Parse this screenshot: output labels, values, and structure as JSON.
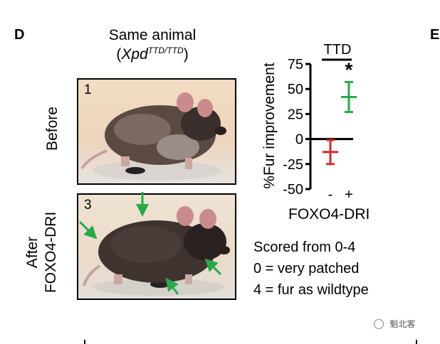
{
  "panel_letter": "D",
  "next_panel_letter": "E",
  "title": {
    "line1": "Same animal",
    "line2_open": "(",
    "line2_gene": "Xpd",
    "line2_super": "TTD/TTD",
    "line2_close": ")"
  },
  "photos": {
    "before": {
      "number": "1",
      "row_label": "Before"
    },
    "after": {
      "number": "3",
      "row_label_line1": "After",
      "row_label_line2": "FOXO4-DRI"
    }
  },
  "colors": {
    "control": "#d62a2a",
    "treated": "#2aa84a",
    "arrow": "#2aa84a"
  },
  "chart_data": {
    "type": "scatter",
    "group_label": "TTD",
    "significance": "*",
    "ylabel": "%Fur improvement",
    "xlabel": "FOXO4-DRI",
    "categories": [
      "-",
      "+"
    ],
    "ylim": [
      -50,
      75
    ],
    "yticks": [
      "75",
      "50",
      "25",
      "0",
      "-25",
      "-50"
    ],
    "series": [
      {
        "category": "-",
        "mean": -13,
        "low": -25,
        "high": -1,
        "color": "#d62a2a"
      },
      {
        "category": "+",
        "mean": 42,
        "low": 27,
        "high": 57,
        "color": "#2aa84a"
      }
    ]
  },
  "legend": {
    "line1": "Scored from 0-4",
    "line2": "0 = very patched",
    "line3": "4 = fur as wildtype"
  },
  "watermark": "魁北客"
}
